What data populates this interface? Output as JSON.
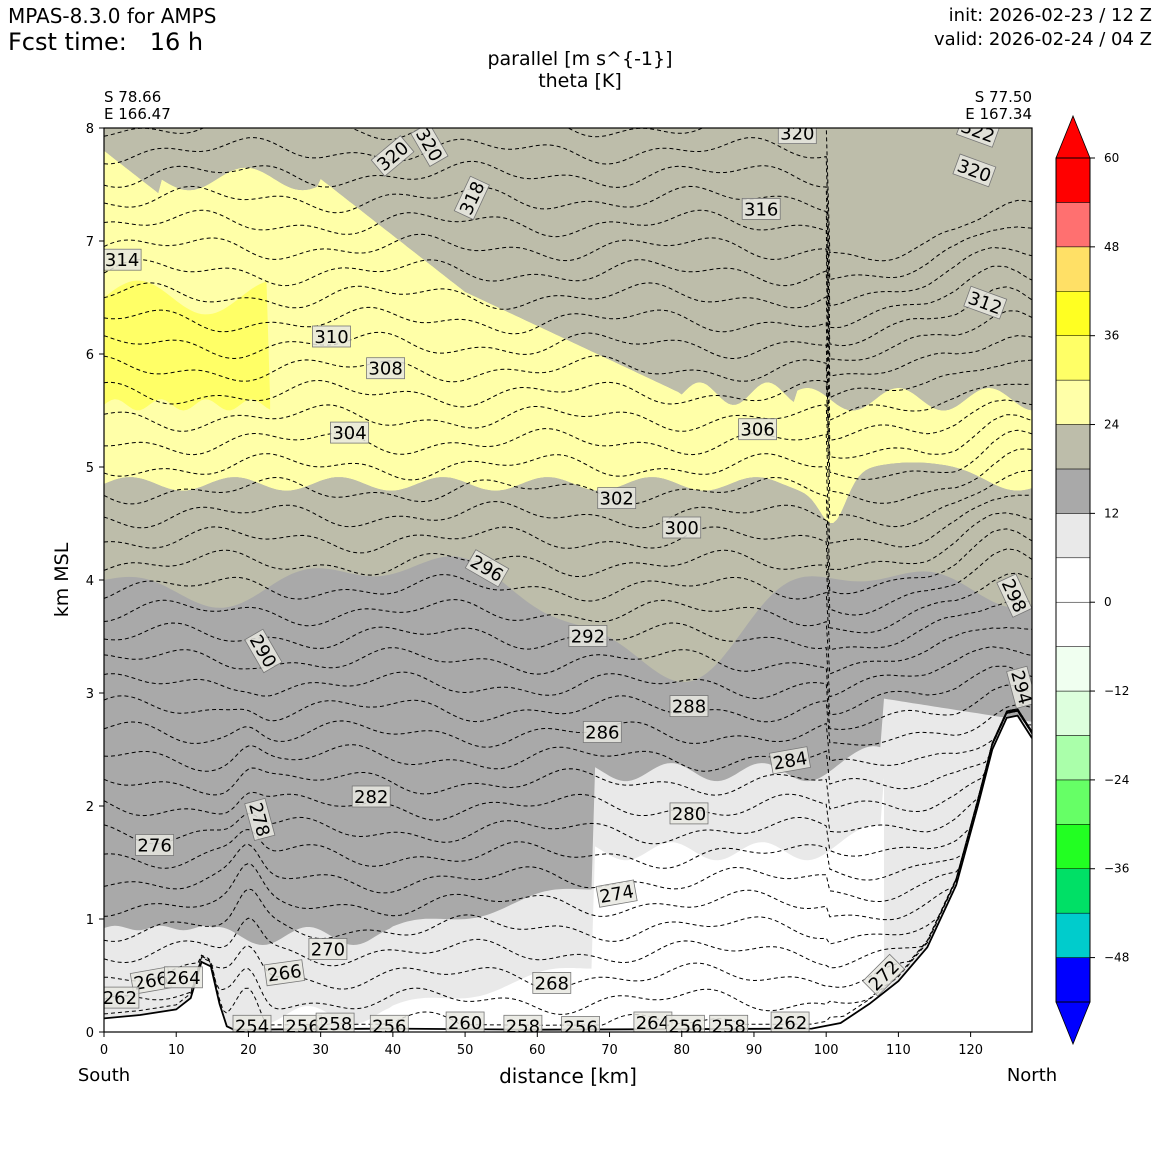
{
  "header": {
    "model": "MPAS-8.3.0 for AMPS",
    "fcst_time": "Fcst time:   16 h",
    "init": "init: 2026-02-23 / 12 Z",
    "valid": "valid: 2026-02-24 / 04 Z"
  },
  "chart_data": {
    "type": "cross-section",
    "title_line1": "parallel [m s^{-1}]",
    "title_line2": "theta [K]",
    "xlabel": "distance [km]",
    "ylabel": "km MSL",
    "left_end": {
      "lat": "S 78.66",
      "lon": "E 166.47",
      "dir": "South"
    },
    "right_end": {
      "lat": "S 77.50",
      "lon": "E 167.34",
      "dir": "North"
    },
    "xlim": [
      0,
      128.5
    ],
    "ylim": [
      0,
      8
    ],
    "x_ticks": [
      0,
      10,
      20,
      30,
      40,
      50,
      60,
      70,
      80,
      90,
      100,
      110,
      120
    ],
    "y_ticks": [
      0,
      1,
      2,
      3,
      4,
      5,
      6,
      7,
      8
    ],
    "colorbar": {
      "bounds": [
        -54,
        -48,
        -42,
        -36,
        -30,
        -24,
        -18,
        -12,
        -6,
        0,
        6,
        12,
        18,
        24,
        30,
        36,
        42,
        48,
        54,
        60
      ],
      "tick_labels": [
        "60",
        "48",
        "36",
        "24",
        "12",
        "0",
        "−12",
        "−24",
        "−36",
        "−48"
      ],
      "tick_values": [
        60,
        48,
        36,
        24,
        12,
        0,
        -12,
        -24,
        -36,
        -48
      ],
      "colors": [
        "#0000ff",
        "#00cccc",
        "#00e066",
        "#22ff22",
        "#66ff66",
        "#aaffaa",
        "#ddffdd",
        "#f0fff0",
        "#ffffff",
        "#ffffff",
        "#e9e9e9",
        "#a9a9a9",
        "#bdbdaa",
        "#ffffa8",
        "#ffff66",
        "#ffff22",
        "#ffe066",
        "#ff7070",
        "#ff0000"
      ],
      "under_color": "#0000ff",
      "over_color": "#ff0000"
    },
    "shading": {
      "bands": [
        {
          "color": "#ffffff",
          "lower": 0,
          "upper": 6
        },
        {
          "color": "#e9e9e9",
          "lower": 6,
          "upper": 12
        },
        {
          "color": "#a9a9a9",
          "lower": 12,
          "upper": 18
        },
        {
          "color": "#bdbdaa",
          "lower": 18,
          "upper": 24
        },
        {
          "color": "#ffffa8",
          "lower": 24,
          "upper": 30
        },
        {
          "color": "#ffff66",
          "lower": 30,
          "upper": 36
        }
      ]
    },
    "terrain": [
      [
        0,
        0.12
      ],
      [
        5,
        0.15
      ],
      [
        10,
        0.2
      ],
      [
        12,
        0.3
      ],
      [
        13.5,
        0.62
      ],
      [
        14.8,
        0.58
      ],
      [
        16,
        0.25
      ],
      [
        17,
        0.05
      ],
      [
        18,
        0.02
      ],
      [
        40,
        0.03
      ],
      [
        60,
        0.02
      ],
      [
        98,
        0.03
      ],
      [
        102,
        0.08
      ],
      [
        106,
        0.25
      ],
      [
        110,
        0.45
      ],
      [
        114,
        0.75
      ],
      [
        118,
        1.3
      ],
      [
        121,
        2.0
      ],
      [
        123,
        2.5
      ],
      [
        125,
        2.78
      ],
      [
        126.5,
        2.8
      ],
      [
        128.5,
        2.6
      ]
    ],
    "theta_labels": [
      {
        "v": "320",
        "x": 40,
        "y": 7.75,
        "rot": -40
      },
      {
        "v": "320",
        "x": 45,
        "y": 7.85,
        "rot": 60
      },
      {
        "v": "320",
        "x": 96,
        "y": 7.95,
        "rot": 0
      },
      {
        "v": "322",
        "x": 121,
        "y": 7.97,
        "rot": 20
      },
      {
        "v": "320",
        "x": 120.5,
        "y": 7.62,
        "rot": 20
      },
      {
        "v": "318",
        "x": 51,
        "y": 7.38,
        "rot": -65
      },
      {
        "v": "316",
        "x": 91,
        "y": 7.28,
        "rot": 0
      },
      {
        "v": "314",
        "x": 2.5,
        "y": 6.83,
        "rot": 0
      },
      {
        "v": "312",
        "x": 122,
        "y": 6.45,
        "rot": 20
      },
      {
        "v": "310",
        "x": 31.5,
        "y": 6.15,
        "rot": 0
      },
      {
        "v": "308",
        "x": 39,
        "y": 5.87,
        "rot": 0
      },
      {
        "v": "306",
        "x": 90.5,
        "y": 5.33,
        "rot": 0
      },
      {
        "v": "304",
        "x": 34,
        "y": 5.3,
        "rot": 0
      },
      {
        "v": "302",
        "x": 71,
        "y": 4.72,
        "rot": 0
      },
      {
        "v": "300",
        "x": 80,
        "y": 4.46,
        "rot": 0
      },
      {
        "v": "296",
        "x": 53,
        "y": 4.1,
        "rot": 30
      },
      {
        "v": "298",
        "x": 126,
        "y": 3.86,
        "rot": 65
      },
      {
        "v": "292",
        "x": 67,
        "y": 3.5,
        "rot": 0
      },
      {
        "v": "290",
        "x": 22,
        "y": 3.37,
        "rot": 60
      },
      {
        "v": "294",
        "x": 127,
        "y": 3.05,
        "rot": 75
      },
      {
        "v": "288",
        "x": 81,
        "y": 2.88,
        "rot": 0
      },
      {
        "v": "286",
        "x": 69,
        "y": 2.65,
        "rot": 0
      },
      {
        "v": "284",
        "x": 95,
        "y": 2.4,
        "rot": -10
      },
      {
        "v": "282",
        "x": 37,
        "y": 2.08,
        "rot": 0
      },
      {
        "v": "280",
        "x": 81,
        "y": 1.93,
        "rot": 0
      },
      {
        "v": "278",
        "x": 21.5,
        "y": 1.88,
        "rot": 75
      },
      {
        "v": "276",
        "x": 7,
        "y": 1.65,
        "rot": 0
      },
      {
        "v": "274",
        "x": 71,
        "y": 1.22,
        "rot": -10
      },
      {
        "v": "270",
        "x": 31,
        "y": 0.73,
        "rot": 0
      },
      {
        "v": "266",
        "x": 25,
        "y": 0.52,
        "rot": -8
      },
      {
        "v": "266",
        "x": 6.5,
        "y": 0.45,
        "rot": -10
      },
      {
        "v": "264",
        "x": 11,
        "y": 0.48,
        "rot": 0
      },
      {
        "v": "262",
        "x": 2.2,
        "y": 0.3,
        "rot": 0
      },
      {
        "v": "268",
        "x": 62,
        "y": 0.43,
        "rot": 0
      },
      {
        "v": "272",
        "x": 108,
        "y": 0.5,
        "rot": -45
      },
      {
        "v": "254",
        "x": 20.5,
        "y": 0.05,
        "rot": 0
      },
      {
        "v": "256",
        "x": 27.5,
        "y": 0.05,
        "rot": 0
      },
      {
        "v": "258",
        "x": 32,
        "y": 0.07,
        "rot": 0
      },
      {
        "v": "256",
        "x": 39.5,
        "y": 0.05,
        "rot": 0
      },
      {
        "v": "260",
        "x": 50,
        "y": 0.08,
        "rot": 0
      },
      {
        "v": "258",
        "x": 58,
        "y": 0.05,
        "rot": 0
      },
      {
        "v": "256",
        "x": 66,
        "y": 0.04,
        "rot": 0
      },
      {
        "v": "264",
        "x": 76,
        "y": 0.08,
        "rot": 0
      },
      {
        "v": "256",
        "x": 80.5,
        "y": 0.05,
        "rot": 0
      },
      {
        "v": "258",
        "x": 86.5,
        "y": 0.05,
        "rot": 0
      },
      {
        "v": "262",
        "x": 95,
        "y": 0.08,
        "rot": 0
      }
    ]
  }
}
